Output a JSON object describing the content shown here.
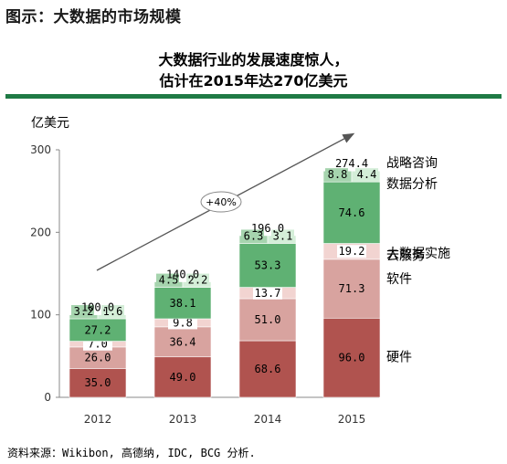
{
  "header": {
    "title": "图示：大数据的市场规模"
  },
  "source_note": "资料来源：Wikibon, 高德纳, IDC, BCG 分析.",
  "colors": {
    "hardware": "#b0534f",
    "software": "#d8a39f",
    "cloud": "#f2d4d1",
    "implementation": "#5fb173",
    "analytics": "#a6d4ae",
    "consulting": "#d4eed8",
    "rule": "#1f7a45",
    "arrow": "#555555"
  },
  "chart_data": {
    "type": "bar",
    "stacked": true,
    "title_lines": [
      "大数据行业的发展速度惊人，",
      "估计在2015年达270亿美元"
    ],
    "ylabel": "亿美元",
    "xlabel": "",
    "ylim": [
      0,
      300
    ],
    "yticks": [
      0,
      100,
      200,
      300
    ],
    "grid": false,
    "categories": [
      "2012",
      "2013",
      "2014",
      "2015"
    ],
    "series": [
      {
        "name": "硬件",
        "values": [
          35.0,
          49.0,
          68.6,
          96.0
        ],
        "labels": [
          "35.0",
          "49.0",
          "68.6",
          "96.0"
        ]
      },
      {
        "name": "软件",
        "values": [
          26.0,
          36.4,
          51.0,
          71.3
        ],
        "labels": [
          "26.0",
          "36.4",
          "51.0",
          "71.3"
        ]
      },
      {
        "name": "云服务",
        "values": [
          7.0,
          9.8,
          13.7,
          19.2
        ],
        "labels": [
          "7.0",
          "9.8",
          "13.7",
          "19.2"
        ]
      },
      {
        "name": "大数据实施",
        "values": [
          27.2,
          38.1,
          53.3,
          74.6
        ],
        "labels": [
          "27.2",
          "38.1",
          "53.3",
          "74.6"
        ]
      },
      {
        "name": "数据分析",
        "values": [
          3.2,
          4.5,
          6.3,
          8.8
        ],
        "labels": [
          "3.2",
          "4.5",
          "6.3",
          "8.8"
        ]
      },
      {
        "name": "战略咨询",
        "values": [
          1.6,
          2.2,
          3.1,
          4.4
        ],
        "labels": [
          "1.6",
          "2.2",
          "3.1",
          "4.4"
        ]
      }
    ],
    "totals": [
      "100.0",
      "140.0",
      "196.0",
      "274.4"
    ],
    "annotations": {
      "growth": "+40%"
    },
    "legend_placement": "right"
  }
}
